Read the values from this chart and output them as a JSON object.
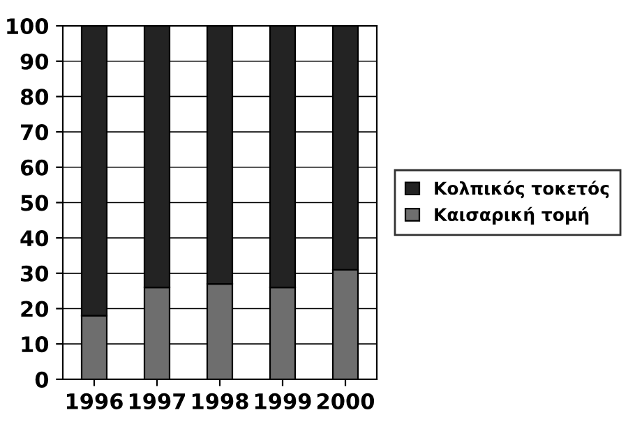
{
  "chart_data": {
    "type": "bar",
    "stacked": true,
    "categories": [
      "1996",
      "1997",
      "1998",
      "1999",
      "2000"
    ],
    "series": [
      {
        "name": "Καισαρική τομή",
        "color": "#6e6e6e",
        "values": [
          18,
          26,
          27,
          26,
          31
        ]
      },
      {
        "name": "Κολπικός τοκετός",
        "color": "#232323",
        "values": [
          82,
          74,
          73,
          74,
          69
        ]
      }
    ],
    "ylim": [
      0,
      100
    ],
    "yticks": [
      0,
      10,
      20,
      30,
      40,
      50,
      60,
      70,
      80,
      90,
      100
    ],
    "grid": "y",
    "legend": "right"
  }
}
